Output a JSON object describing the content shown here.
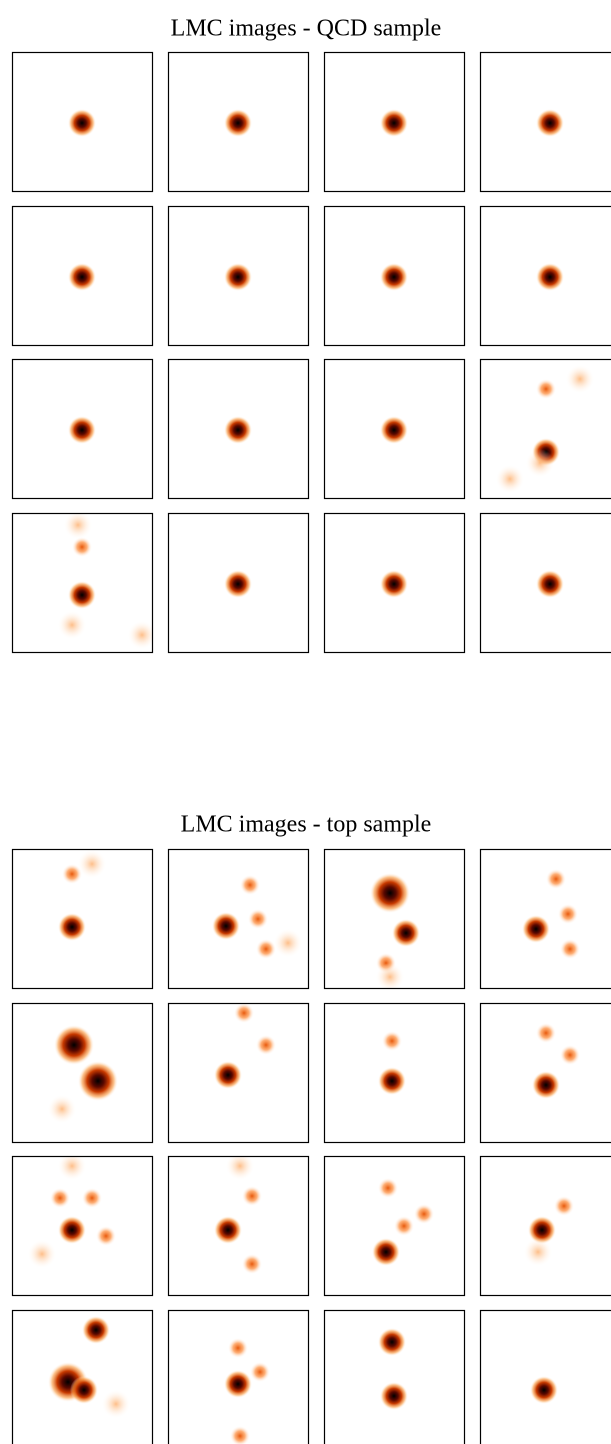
{
  "figures": [
    {
      "title": "LMC images - QCD sample"
    },
    {
      "title": "LMC images - top sample"
    }
  ]
}
